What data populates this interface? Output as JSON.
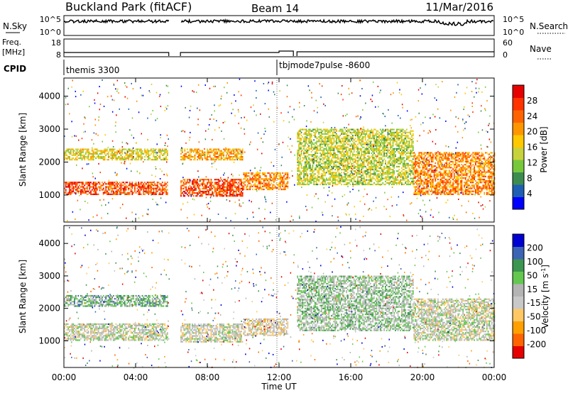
{
  "header": {
    "title": "Buckland Park (fitACF)",
    "beam": "Beam 14",
    "date": "11/Mar/2016"
  },
  "panels": {
    "nsky": {
      "label": "N.Sky",
      "ticks_left": [
        "10^5",
        "10^0"
      ],
      "ticks_right": [
        "10^5",
        "10^0"
      ],
      "right_label": "N.Search"
    },
    "freq": {
      "label_top": "Freq.",
      "label_bottom": "[MHz]",
      "ticks_left": [
        "18",
        "8"
      ],
      "ticks_right": [
        "60",
        "0"
      ],
      "right_label": "Nave"
    },
    "cpid": {
      "label": "CPID",
      "entries": [
        {
          "text": "themis 3300",
          "start_hour": 0.1
        },
        {
          "text": "tbjmode7pulse -8600",
          "start_hour": 12.0
        }
      ]
    }
  },
  "colors": {
    "power_scale": [
      "#0000ff",
      "#1e5fb4",
      "#3c8c50",
      "#78c83c",
      "#c8d23c",
      "#ffc800",
      "#ff9600",
      "#ff6400",
      "#ff3200",
      "#e60000"
    ],
    "velocity_scale": [
      "#e60000",
      "#ff6400",
      "#ffa000",
      "#ffc864",
      "#c8c8c8",
      "#b4b4b4",
      "#64c850",
      "#3c9650",
      "#3c64b4",
      "#0000d2"
    ],
    "noise_line": "#000000"
  },
  "chart_data": [
    {
      "type": "heatmap",
      "name": "power",
      "title": "Power [dB]",
      "xlabel": "",
      "ylabel": "Slant Range [km]",
      "x_ticks": [
        "00:00",
        "04:00",
        "08:00",
        "12:00",
        "16:00",
        "20:00",
        "00:00"
      ],
      "x_range_hours": [
        0,
        24
      ],
      "y_ticks": [
        1000,
        2000,
        3000,
        4000
      ],
      "y_range_km": [
        180,
        4550
      ],
      "colorbar_ticks": [
        "4",
        "8",
        "12",
        "16",
        "20",
        "24",
        "28"
      ],
      "colorbar_range": [
        0,
        32
      ],
      "data_gaps_hours": [
        [
          5.85,
          6.5
        ]
      ],
      "echo_bands": [
        {
          "start_hour": 0.0,
          "end_hour": 5.8,
          "range_km": [
            1000,
            1400
          ],
          "level_db": 26
        },
        {
          "start_hour": 0.0,
          "end_hour": 5.8,
          "range_km": [
            2050,
            2400
          ],
          "level_db": 16
        },
        {
          "start_hour": 6.5,
          "end_hour": 10.0,
          "range_km": [
            950,
            1450
          ],
          "level_db": 26
        },
        {
          "start_hour": 6.5,
          "end_hour": 10.0,
          "range_km": [
            2050,
            2400
          ],
          "level_db": 20
        },
        {
          "start_hour": 10.0,
          "end_hour": 12.5,
          "range_km": [
            1150,
            1650
          ],
          "level_db": 22
        },
        {
          "start_hour": 13.0,
          "end_hour": 19.5,
          "range_km": [
            1300,
            3000
          ],
          "level_db": 14
        },
        {
          "start_hour": 19.5,
          "end_hour": 24.0,
          "range_km": [
            1000,
            2300
          ],
          "level_db": 22
        }
      ]
    },
    {
      "type": "heatmap",
      "name": "velocity",
      "title": "Velocity [m s^-1]",
      "xlabel": "Time UT",
      "ylabel": "Slant Range [km]",
      "x_ticks": [
        "00:00",
        "04:00",
        "08:00",
        "12:00",
        "16:00",
        "20:00",
        "00:00"
      ],
      "x_range_hours": [
        0,
        24
      ],
      "y_ticks": [
        1000,
        2000,
        3000,
        4000
      ],
      "y_range_km": [
        180,
        4550
      ],
      "colorbar_ticks": [
        "-200",
        "-100",
        "-50",
        "-15",
        "15",
        "50",
        "100",
        "200"
      ],
      "colorbar_range": [
        -250,
        250
      ],
      "data_gaps_hours": [
        [
          5.85,
          6.5
        ]
      ],
      "echo_bands": [
        {
          "start_hour": 0.0,
          "end_hour": 5.8,
          "range_km": [
            1000,
            1500
          ],
          "level_ms": 0
        },
        {
          "start_hour": 0.0,
          "end_hour": 5.8,
          "range_km": [
            2050,
            2400
          ],
          "level_ms": 80
        },
        {
          "start_hour": 6.5,
          "end_hour": 10.0,
          "range_km": [
            950,
            1500
          ],
          "level_ms": 0
        },
        {
          "start_hour": 10.0,
          "end_hour": 12.5,
          "range_km": [
            1150,
            1650
          ],
          "level_ms": -30
        },
        {
          "start_hour": 13.0,
          "end_hour": 19.5,
          "range_km": [
            1300,
            3000
          ],
          "level_ms": 40
        },
        {
          "start_hour": 19.5,
          "end_hour": 24.0,
          "range_km": [
            1000,
            2300
          ],
          "level_ms": 0
        }
      ]
    }
  ]
}
